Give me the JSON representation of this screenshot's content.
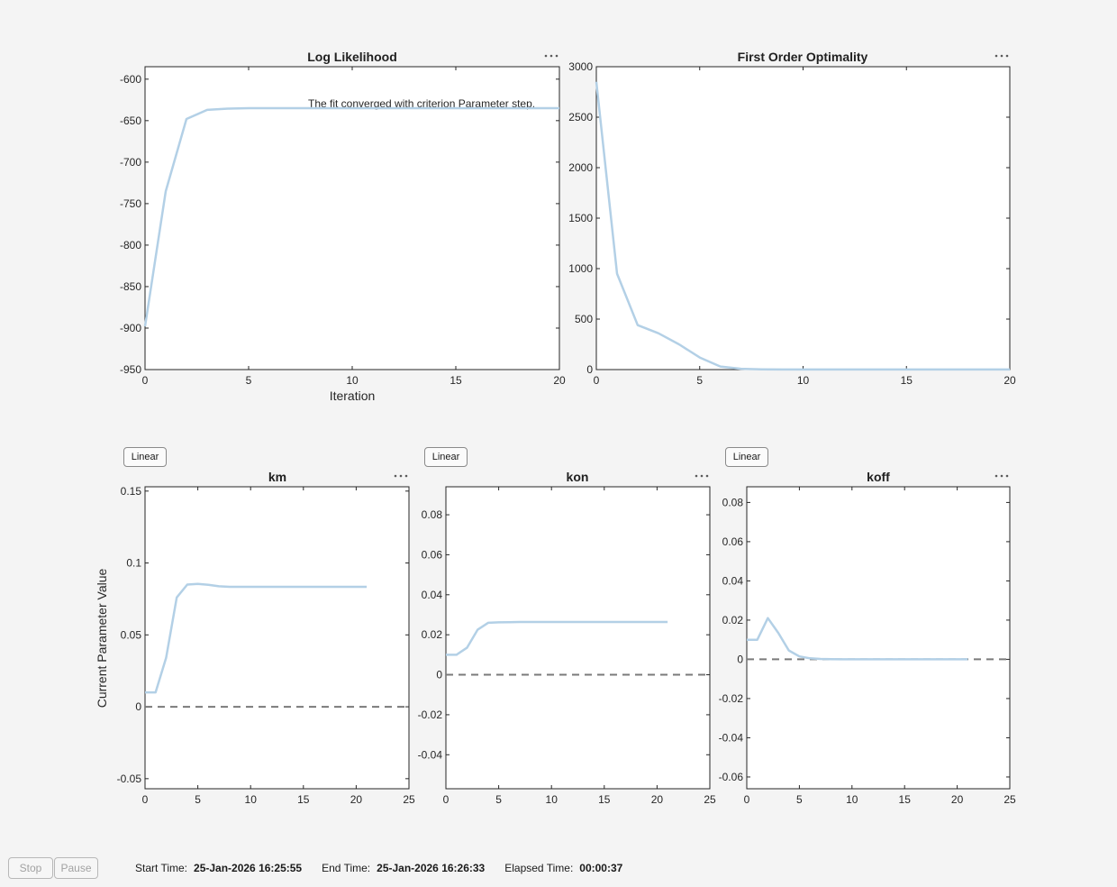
{
  "chart_data": [
    {
      "id": "loglik",
      "type": "line",
      "title": "Log Likelihood",
      "xlabel": "Iteration",
      "ylabel": "",
      "xlim": [
        0,
        20
      ],
      "ylim": [
        -950,
        -585
      ],
      "xticks": [
        0,
        5,
        10,
        15,
        20
      ],
      "yticks": [
        -950,
        -900,
        -850,
        -800,
        -750,
        -700,
        -650,
        -600
      ],
      "series": [
        {
          "x": [
            0,
            1,
            2,
            3,
            4,
            5,
            6,
            7,
            8,
            9,
            10,
            11,
            12,
            13,
            14,
            15,
            16,
            17,
            18,
            19,
            20
          ],
          "y": [
            -898,
            -735,
            -648,
            -637,
            -635.5,
            -635,
            -635,
            -635,
            -635,
            -635,
            -635,
            -635,
            -635,
            -635,
            -635,
            -635,
            -635,
            -635,
            -635,
            -635,
            -635
          ]
        }
      ],
      "annotation": {
        "text": "The fit converged with criterion Parameter step.",
        "x": 7.8,
        "y": -610
      },
      "color": "#b3d0e6"
    },
    {
      "id": "optim",
      "type": "line",
      "title": "First Order Optimality",
      "xlabel": "",
      "ylabel": "",
      "xlim": [
        0,
        20
      ],
      "ylim": [
        0,
        3000
      ],
      "xticks": [
        0,
        5,
        10,
        15,
        20
      ],
      "yticks": [
        0,
        500,
        1000,
        1500,
        2000,
        2500,
        3000
      ],
      "series": [
        {
          "x": [
            0,
            1,
            2,
            3,
            4,
            5,
            6,
            7,
            8,
            9,
            10,
            11,
            12,
            13,
            14,
            15,
            16,
            17,
            18,
            19,
            20
          ],
          "y": [
            2850,
            950,
            440,
            360,
            250,
            120,
            30,
            8,
            3,
            1,
            1,
            1,
            1,
            1,
            1,
            1,
            1,
            1,
            1,
            1,
            1
          ]
        }
      ],
      "color": "#b3d0e6"
    },
    {
      "id": "km",
      "type": "line",
      "title": "km",
      "xlabel": "",
      "ylabel": "Current Parameter Value",
      "xlim": [
        0,
        25
      ],
      "ylim": [
        -0.057,
        0.153
      ],
      "xticks": [
        0,
        5,
        10,
        15,
        20,
        25
      ],
      "yticks": [
        -0.05,
        0,
        0.05,
        0.1,
        0.15
      ],
      "ytick_labels": [
        "-0.05",
        "0",
        "0.05",
        "0.1",
        "0.15"
      ],
      "series": [
        {
          "x": [
            0,
            1,
            2,
            3,
            4,
            5,
            6,
            7,
            8,
            9,
            10,
            11,
            12,
            13,
            14,
            15,
            16,
            17,
            18,
            19,
            20,
            21
          ],
          "y": [
            0.01,
            0.01,
            0.034,
            0.076,
            0.085,
            0.0855,
            0.0848,
            0.0838,
            0.0834,
            0.0834,
            0.0834,
            0.0834,
            0.0834,
            0.0834,
            0.0834,
            0.0834,
            0.0834,
            0.0834,
            0.0834,
            0.0834,
            0.0834,
            0.0834
          ]
        }
      ],
      "reference_line": 0,
      "color": "#b3d0e6",
      "scale_button": "Linear"
    },
    {
      "id": "kon",
      "type": "line",
      "title": "kon",
      "xlabel": "",
      "ylabel": "",
      "xlim": [
        0,
        25
      ],
      "ylim": [
        -0.057,
        0.094
      ],
      "xticks": [
        0,
        5,
        10,
        15,
        20,
        25
      ],
      "yticks": [
        -0.04,
        -0.02,
        0,
        0.02,
        0.04,
        0.06,
        0.08
      ],
      "ytick_labels": [
        "-0.04",
        "-0.02",
        "0",
        "0.02",
        "0.04",
        "0.06",
        "0.08"
      ],
      "series": [
        {
          "x": [
            0,
            1,
            2,
            3,
            4,
            5,
            6,
            7,
            8,
            9,
            10,
            11,
            12,
            13,
            14,
            15,
            16,
            17,
            18,
            19,
            20,
            21
          ],
          "y": [
            0.01,
            0.01,
            0.0135,
            0.0225,
            0.026,
            0.0262,
            0.0263,
            0.0264,
            0.0264,
            0.0264,
            0.0264,
            0.0264,
            0.0264,
            0.0264,
            0.0264,
            0.0264,
            0.0264,
            0.0264,
            0.0264,
            0.0264,
            0.0264,
            0.0264
          ]
        }
      ],
      "reference_line": 0,
      "color": "#b3d0e6",
      "scale_button": "Linear"
    },
    {
      "id": "koff",
      "type": "line",
      "title": "koff",
      "xlabel": "",
      "ylabel": "",
      "xlim": [
        0,
        25
      ],
      "ylim": [
        -0.066,
        0.088
      ],
      "xticks": [
        0,
        5,
        10,
        15,
        20,
        25
      ],
      "yticks": [
        -0.06,
        -0.04,
        -0.02,
        0,
        0.02,
        0.04,
        0.06,
        0.08
      ],
      "ytick_labels": [
        "-0.06",
        "-0.04",
        "-0.02",
        "0",
        "0.02",
        "0.04",
        "0.06",
        "0.08"
      ],
      "series": [
        {
          "x": [
            0,
            1,
            2,
            3,
            4,
            5,
            6,
            7,
            8,
            9,
            10,
            11,
            12,
            13,
            14,
            15,
            16,
            17,
            18,
            19,
            20,
            21
          ],
          "y": [
            0.01,
            0.01,
            0.021,
            0.0135,
            0.0045,
            0.0015,
            0.0005,
            0.0002,
            0.0001,
            0,
            0,
            0,
            0,
            0,
            0,
            0,
            0,
            0,
            0,
            0,
            0,
            0
          ]
        }
      ],
      "reference_line": 0,
      "color": "#b3d0e6",
      "scale_button": "Linear"
    }
  ],
  "controls": {
    "stop": "Stop",
    "pause": "Pause"
  },
  "status": {
    "start_label": "Start Time:",
    "start_value": "25-Jan-2026 16:25:55",
    "end_label": "End Time:",
    "end_value": "25-Jan-2026 16:26:33",
    "elapsed_label": "Elapsed Time:",
    "elapsed_value": "00:00:37"
  }
}
